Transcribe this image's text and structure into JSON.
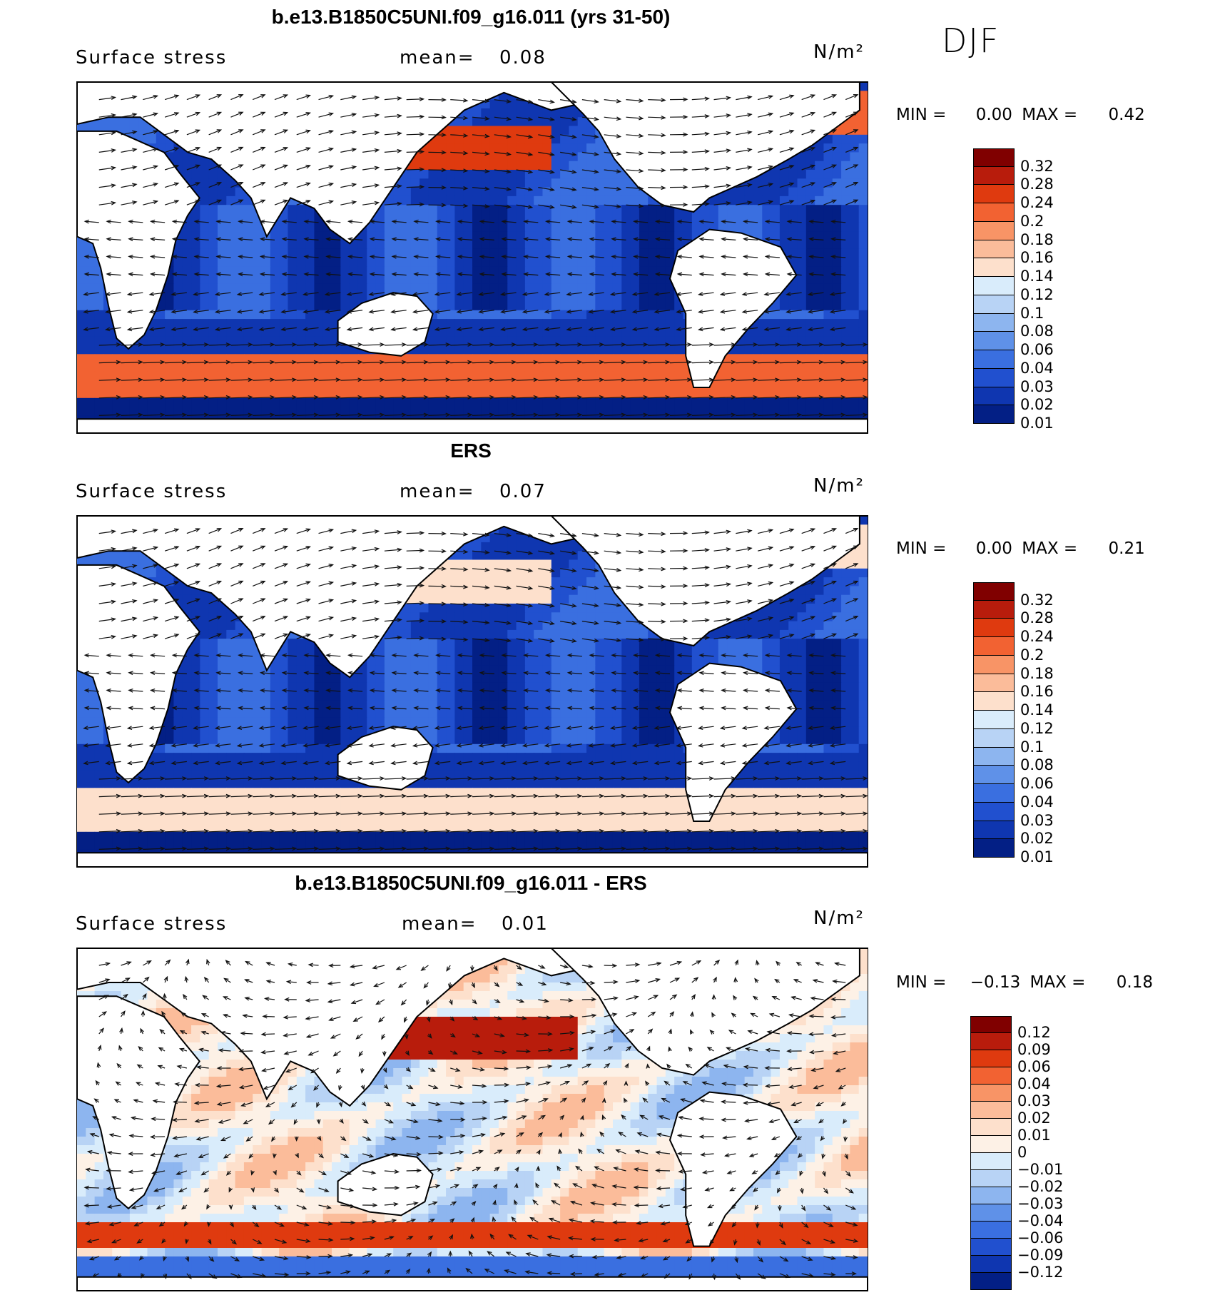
{
  "season_label": "DJF",
  "colors": {
    "land": "#ffffff",
    "coast": "#000000",
    "arrow": "#111111"
  },
  "panels": [
    {
      "title": "b.e13.B1850C5UNI.f09_g16.011 (yrs 31-50)",
      "variable": "Surface stress",
      "mean_label": "mean=",
      "mean_value": "0.08",
      "units": "N/m²",
      "min_label": "MIN =",
      "min_value": "0.00",
      "max_label": "MAX =",
      "max_value": "0.42",
      "field": "model",
      "colorbar": {
        "labels": [
          "0.32",
          "0.28",
          "0.24",
          "0.2",
          "0.18",
          "0.16",
          "0.14",
          "0.12",
          "0.1",
          "0.08",
          "0.06",
          "0.04",
          "0.03",
          "0.02",
          "0.01"
        ],
        "colors": [
          "#800000",
          "#b81c0c",
          "#df3a0f",
          "#f26232",
          "#f89466",
          "#fbbc9a",
          "#fde0cc",
          "#d9ecfb",
          "#b8d3f5",
          "#8db5ef",
          "#5f91e8",
          "#3a6fe0",
          "#2150cf",
          "#0f36b0",
          "#031f85"
        ]
      }
    },
    {
      "title": "ERS",
      "variable": "Surface stress",
      "mean_label": "mean=",
      "mean_value": "0.07",
      "units": "N/m²",
      "min_label": "MIN =",
      "min_value": "0.00",
      "max_label": "MAX =",
      "max_value": "0.21",
      "field": "obs",
      "colorbar": {
        "labels": [
          "0.32",
          "0.28",
          "0.24",
          "0.2",
          "0.18",
          "0.16",
          "0.14",
          "0.12",
          "0.1",
          "0.08",
          "0.06",
          "0.04",
          "0.03",
          "0.02",
          "0.01"
        ],
        "colors": [
          "#800000",
          "#b81c0c",
          "#df3a0f",
          "#f26232",
          "#f89466",
          "#fbbc9a",
          "#fde0cc",
          "#d9ecfb",
          "#b8d3f5",
          "#8db5ef",
          "#5f91e8",
          "#3a6fe0",
          "#2150cf",
          "#0f36b0",
          "#031f85"
        ]
      }
    },
    {
      "title": "b.e13.B1850C5UNI.f09_g16.011 - ERS",
      "variable": "Surface stress",
      "mean_label": "mean=",
      "mean_value": "0.01",
      "units": "N/m²",
      "min_label": "MIN =",
      "min_value": "−0.13",
      "max_label": "MAX =",
      "max_value": "0.18",
      "field": "diff",
      "colorbar": {
        "labels": [
          "0.12",
          "0.09",
          "0.06",
          "0.04",
          "0.03",
          "0.02",
          "0.01",
          "0",
          "−0.01",
          "−0.02",
          "−0.03",
          "−0.04",
          "−0.06",
          "−0.09",
          "−0.12"
        ],
        "colors": [
          "#800000",
          "#b81c0c",
          "#df3a0f",
          "#f26232",
          "#f89466",
          "#fbbc9a",
          "#fde0cc",
          "#fdf1e6",
          "#d9ecfb",
          "#b8d3f5",
          "#8db5ef",
          "#5f91e8",
          "#3a6fe0",
          "#2150cf",
          "#0f36b0",
          "#031f85"
        ]
      }
    }
  ]
}
